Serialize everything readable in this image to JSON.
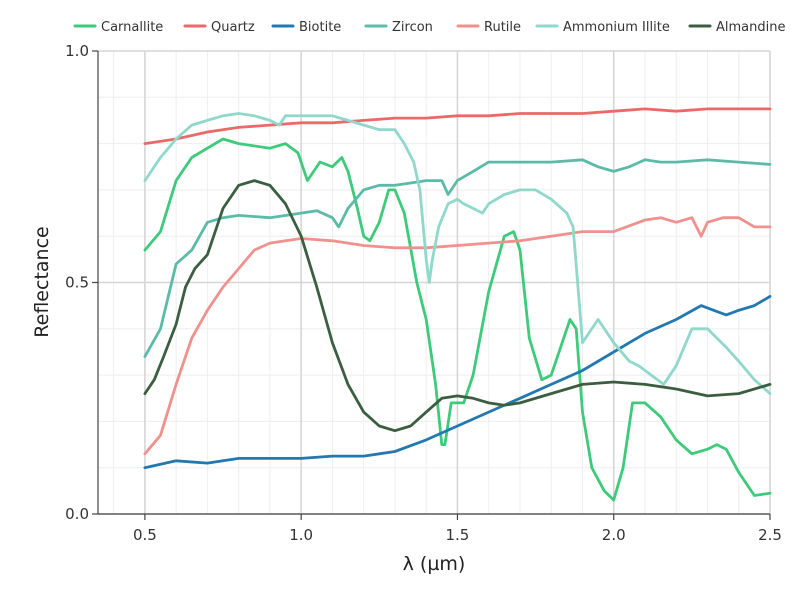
{
  "chart_data": {
    "type": "line",
    "title": "",
    "xlabel": "λ (µm)",
    "ylabel": "Reflectance",
    "xlim": [
      0.35,
      2.5
    ],
    "ylim": [
      0.0,
      1.0
    ],
    "xticks": [
      0.5,
      1.0,
      1.5,
      2.0,
      2.5
    ],
    "xtick_labels": [
      "0.5",
      "1.0",
      "1.5",
      "2.0",
      "2.5"
    ],
    "yticks": [
      0.0,
      0.5,
      1.0
    ],
    "ytick_labels": [
      "0.0",
      "0.5",
      "1.0"
    ],
    "grid": true,
    "legend_position": "top",
    "series": [
      {
        "name": "Carnallite",
        "color": "#3dcb7b",
        "x": [
          0.5,
          0.55,
          0.6,
          0.65,
          0.7,
          0.75,
          0.8,
          0.9,
          0.95,
          0.99,
          1.02,
          1.06,
          1.1,
          1.13,
          1.15,
          1.18,
          1.2,
          1.22,
          1.25,
          1.28,
          1.3,
          1.33,
          1.37,
          1.4,
          1.43,
          1.45,
          1.46,
          1.48,
          1.52,
          1.55,
          1.6,
          1.65,
          1.68,
          1.7,
          1.73,
          1.77,
          1.8,
          1.83,
          1.86,
          1.88,
          1.9,
          1.93,
          1.97,
          2.0,
          2.03,
          2.06,
          2.1,
          2.15,
          2.2,
          2.25,
          2.3,
          2.33,
          2.36,
          2.4,
          2.45,
          2.5
        ],
        "y": [
          0.57,
          0.61,
          0.72,
          0.77,
          0.79,
          0.81,
          0.8,
          0.79,
          0.8,
          0.78,
          0.72,
          0.76,
          0.75,
          0.77,
          0.74,
          0.66,
          0.6,
          0.59,
          0.63,
          0.7,
          0.7,
          0.65,
          0.5,
          0.42,
          0.28,
          0.15,
          0.15,
          0.24,
          0.24,
          0.3,
          0.48,
          0.6,
          0.61,
          0.57,
          0.38,
          0.29,
          0.3,
          0.36,
          0.42,
          0.4,
          0.22,
          0.1,
          0.05,
          0.03,
          0.1,
          0.24,
          0.24,
          0.21,
          0.16,
          0.13,
          0.14,
          0.15,
          0.14,
          0.09,
          0.04,
          0.045
        ]
      },
      {
        "name": "Quartz",
        "color": "#ea6a6a",
        "x": [
          0.5,
          0.6,
          0.7,
          0.8,
          0.9,
          1.0,
          1.1,
          1.2,
          1.3,
          1.4,
          1.5,
          1.6,
          1.7,
          1.8,
          1.9,
          2.0,
          2.1,
          2.2,
          2.3,
          2.4,
          2.5
        ],
        "y": [
          0.8,
          0.81,
          0.825,
          0.835,
          0.84,
          0.845,
          0.845,
          0.85,
          0.855,
          0.855,
          0.86,
          0.86,
          0.865,
          0.865,
          0.865,
          0.87,
          0.875,
          0.87,
          0.875,
          0.875,
          0.875
        ]
      },
      {
        "name": "Biotite",
        "color": "#2279b0",
        "x": [
          0.5,
          0.6,
          0.7,
          0.8,
          0.9,
          1.0,
          1.1,
          1.2,
          1.3,
          1.4,
          1.5,
          1.6,
          1.7,
          1.8,
          1.9,
          2.0,
          2.1,
          2.2,
          2.28,
          2.32,
          2.36,
          2.4,
          2.45,
          2.5
        ],
        "y": [
          0.1,
          0.115,
          0.11,
          0.12,
          0.12,
          0.12,
          0.125,
          0.125,
          0.135,
          0.16,
          0.19,
          0.22,
          0.25,
          0.28,
          0.31,
          0.35,
          0.39,
          0.42,
          0.45,
          0.44,
          0.43,
          0.44,
          0.45,
          0.47
        ]
      },
      {
        "name": "Zircon",
        "color": "#5bbba8",
        "x": [
          0.5,
          0.55,
          0.6,
          0.65,
          0.7,
          0.75,
          0.8,
          0.9,
          1.0,
          1.05,
          1.1,
          1.12,
          1.15,
          1.2,
          1.25,
          1.3,
          1.35,
          1.4,
          1.45,
          1.47,
          1.5,
          1.55,
          1.6,
          1.65,
          1.7,
          1.8,
          1.9,
          1.95,
          2.0,
          2.05,
          2.1,
          2.15,
          2.2,
          2.3,
          2.4,
          2.5
        ],
        "y": [
          0.34,
          0.4,
          0.54,
          0.57,
          0.63,
          0.64,
          0.645,
          0.64,
          0.65,
          0.655,
          0.64,
          0.62,
          0.66,
          0.7,
          0.71,
          0.71,
          0.715,
          0.72,
          0.72,
          0.69,
          0.72,
          0.74,
          0.76,
          0.76,
          0.76,
          0.76,
          0.765,
          0.75,
          0.74,
          0.75,
          0.765,
          0.76,
          0.76,
          0.765,
          0.76,
          0.755
        ]
      },
      {
        "name": "Rutile",
        "color": "#f0918e",
        "x": [
          0.5,
          0.55,
          0.6,
          0.65,
          0.7,
          0.75,
          0.8,
          0.85,
          0.9,
          0.95,
          1.0,
          1.1,
          1.2,
          1.3,
          1.4,
          1.5,
          1.6,
          1.7,
          1.8,
          1.9,
          2.0,
          2.1,
          2.15,
          2.2,
          2.25,
          2.28,
          2.3,
          2.35,
          2.4,
          2.45,
          2.5
        ],
        "y": [
          0.13,
          0.17,
          0.28,
          0.38,
          0.44,
          0.49,
          0.53,
          0.57,
          0.585,
          0.59,
          0.595,
          0.59,
          0.58,
          0.575,
          0.575,
          0.58,
          0.585,
          0.59,
          0.6,
          0.61,
          0.61,
          0.635,
          0.64,
          0.63,
          0.64,
          0.6,
          0.63,
          0.64,
          0.64,
          0.62,
          0.62
        ]
      },
      {
        "name": "Ammonium Illite",
        "color": "#8fd8cb",
        "x": [
          0.5,
          0.55,
          0.6,
          0.65,
          0.7,
          0.75,
          0.8,
          0.85,
          0.9,
          0.93,
          0.95,
          1.0,
          1.05,
          1.1,
          1.15,
          1.2,
          1.25,
          1.3,
          1.33,
          1.36,
          1.38,
          1.4,
          1.41,
          1.42,
          1.44,
          1.47,
          1.5,
          1.52,
          1.55,
          1.58,
          1.6,
          1.65,
          1.7,
          1.75,
          1.8,
          1.85,
          1.87,
          1.9,
          1.92,
          1.95,
          2.0,
          2.05,
          2.08,
          2.12,
          2.16,
          2.2,
          2.25,
          2.3,
          2.33,
          2.36,
          2.4,
          2.45,
          2.5
        ],
        "y": [
          0.72,
          0.77,
          0.81,
          0.84,
          0.85,
          0.86,
          0.865,
          0.86,
          0.85,
          0.84,
          0.86,
          0.86,
          0.86,
          0.86,
          0.85,
          0.84,
          0.83,
          0.83,
          0.8,
          0.76,
          0.7,
          0.55,
          0.5,
          0.55,
          0.62,
          0.67,
          0.68,
          0.67,
          0.66,
          0.65,
          0.67,
          0.69,
          0.7,
          0.7,
          0.68,
          0.65,
          0.62,
          0.37,
          0.39,
          0.42,
          0.37,
          0.33,
          0.32,
          0.3,
          0.28,
          0.32,
          0.4,
          0.4,
          0.38,
          0.36,
          0.33,
          0.29,
          0.26
        ]
      },
      {
        "name": "Almandine",
        "color": "#3b5e40",
        "x": [
          0.5,
          0.53,
          0.56,
          0.6,
          0.63,
          0.66,
          0.7,
          0.75,
          0.8,
          0.85,
          0.9,
          0.95,
          1.0,
          1.05,
          1.1,
          1.15,
          1.2,
          1.25,
          1.3,
          1.35,
          1.4,
          1.45,
          1.5,
          1.55,
          1.6,
          1.65,
          1.7,
          1.8,
          1.9,
          2.0,
          2.1,
          2.2,
          2.3,
          2.4,
          2.5
        ],
        "y": [
          0.26,
          0.29,
          0.34,
          0.41,
          0.49,
          0.53,
          0.56,
          0.66,
          0.71,
          0.72,
          0.71,
          0.67,
          0.6,
          0.49,
          0.37,
          0.28,
          0.22,
          0.19,
          0.18,
          0.19,
          0.22,
          0.25,
          0.255,
          0.25,
          0.24,
          0.235,
          0.24,
          0.26,
          0.28,
          0.285,
          0.28,
          0.27,
          0.255,
          0.26,
          0.28
        ]
      }
    ]
  }
}
